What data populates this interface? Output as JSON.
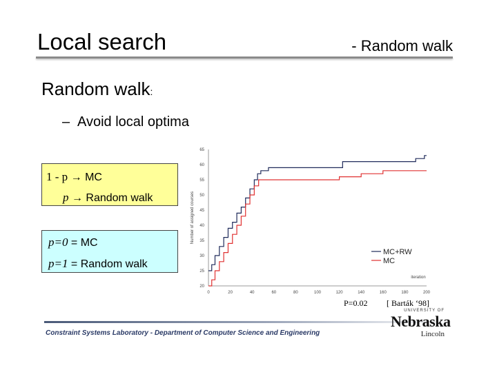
{
  "slide": {
    "title": "Local search",
    "subtitle": "- Random walk",
    "topic": "Random walk",
    "topic_colon": ":",
    "bullet_dash": "–",
    "bullet": "Avoid local optima",
    "box1": {
      "line1_math": "1 - p",
      "line1_text": " → MC",
      "line2_math": "p",
      "line2_text": " → Random walk"
    },
    "box2": {
      "line1_math": "p=0",
      "line1_text": "  = MC",
      "line2_math": "p=1",
      "line2_text": "  = Random walk"
    },
    "citation_p": "P=0.02",
    "citation_ref": "[ Barták ‘98]",
    "footer": "Constraint Systems Laboratory - Department of Computer Science and Engineering",
    "logo": {
      "top": "UNIVERSITY OF",
      "main": "Nebraska",
      "sub": "Lincoln"
    }
  },
  "chart_data": {
    "type": "line",
    "title": "",
    "xlabel": "iteration",
    "ylabel": "Number of assigned courses",
    "xlim": [
      0,
      200
    ],
    "ylim": [
      20,
      65
    ],
    "x_ticks": [
      0,
      20,
      40,
      60,
      80,
      100,
      120,
      140,
      160,
      180,
      200
    ],
    "y_ticks": [
      20,
      25,
      30,
      35,
      40,
      45,
      50,
      55,
      60,
      65
    ],
    "grid": false,
    "legend_position": "bottom-right",
    "series": [
      {
        "name": "MC+RW",
        "color": "#1f2a5a",
        "points": [
          [
            0,
            25
          ],
          [
            3,
            27
          ],
          [
            6,
            30
          ],
          [
            10,
            33
          ],
          [
            14,
            36
          ],
          [
            18,
            39
          ],
          [
            22,
            41
          ],
          [
            26,
            44
          ],
          [
            30,
            46
          ],
          [
            34,
            49
          ],
          [
            38,
            52
          ],
          [
            42,
            55
          ],
          [
            45,
            57
          ],
          [
            48,
            58
          ],
          [
            52,
            58
          ],
          [
            55,
            59
          ],
          [
            60,
            59
          ],
          [
            65,
            59
          ],
          [
            70,
            59
          ],
          [
            80,
            59
          ],
          [
            90,
            59
          ],
          [
            100,
            59
          ],
          [
            115,
            59
          ],
          [
            120,
            59
          ],
          [
            123,
            61
          ],
          [
            130,
            61
          ],
          [
            150,
            61
          ],
          [
            170,
            61
          ],
          [
            185,
            61
          ],
          [
            190,
            62
          ],
          [
            195,
            62
          ],
          [
            198,
            63
          ],
          [
            200,
            63
          ]
        ]
      },
      {
        "name": "MC",
        "color": "#e03030",
        "points": [
          [
            0,
            20
          ],
          [
            3,
            22
          ],
          [
            6,
            25
          ],
          [
            10,
            28
          ],
          [
            14,
            31
          ],
          [
            18,
            34
          ],
          [
            22,
            37
          ],
          [
            26,
            40
          ],
          [
            30,
            43
          ],
          [
            34,
            47
          ],
          [
            38,
            50
          ],
          [
            42,
            53
          ],
          [
            46,
            55
          ],
          [
            50,
            55
          ],
          [
            55,
            55
          ],
          [
            60,
            55
          ],
          [
            70,
            55
          ],
          [
            80,
            55
          ],
          [
            95,
            55
          ],
          [
            110,
            55
          ],
          [
            118,
            55
          ],
          [
            120,
            56
          ],
          [
            130,
            56
          ],
          [
            140,
            57
          ],
          [
            150,
            57
          ],
          [
            160,
            58
          ],
          [
            170,
            58
          ],
          [
            180,
            58
          ],
          [
            190,
            58
          ],
          [
            200,
            58
          ]
        ]
      }
    ]
  }
}
